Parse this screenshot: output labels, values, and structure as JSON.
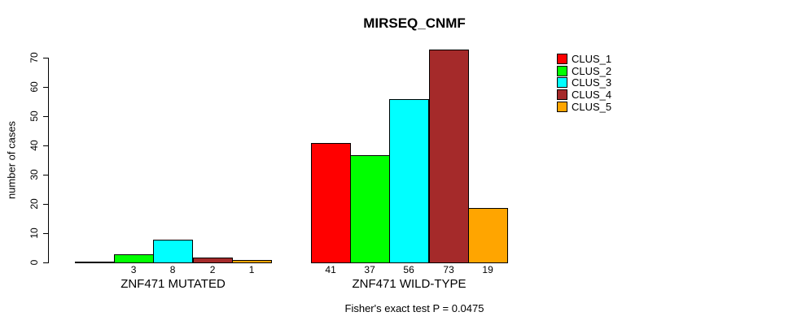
{
  "chart_data": {
    "type": "bar",
    "title": "MIRSEQ_CNMF",
    "ylabel": "number of cases",
    "ylim": [
      0,
      70
    ],
    "yticks": [
      0,
      10,
      20,
      30,
      40,
      50,
      60,
      70
    ],
    "grid": false,
    "legend_position": "right",
    "categories": [
      "ZNF471 MUTATED",
      "ZNF471 WILD-TYPE"
    ],
    "series": [
      {
        "name": "CLUS_1",
        "color": "#ff0000",
        "values": [
          0,
          41
        ]
      },
      {
        "name": "CLUS_2",
        "color": "#00ff00",
        "values": [
          3,
          37
        ]
      },
      {
        "name": "CLUS_3",
        "color": "#00ffff",
        "values": [
          8,
          56
        ]
      },
      {
        "name": "CLUS_4",
        "color": "#a52a2a",
        "values": [
          2,
          73
        ]
      },
      {
        "name": "CLUS_5",
        "color": "#ffa500",
        "values": [
          1,
          19
        ]
      }
    ],
    "bar_labels": [
      [
        "",
        "3",
        "8",
        "2",
        "1"
      ],
      [
        "41",
        "37",
        "56",
        "73",
        "19"
      ]
    ],
    "footnote": "Fisher's exact test P = 0.0475"
  }
}
